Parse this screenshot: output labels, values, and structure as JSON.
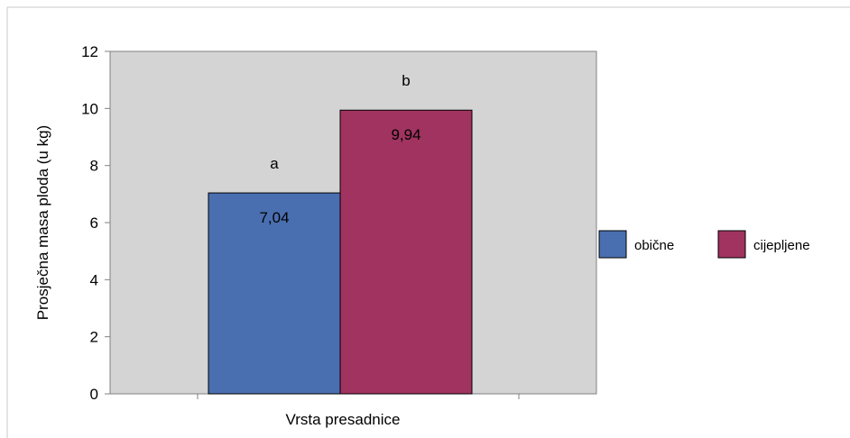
{
  "chart_data": {
    "type": "bar",
    "title": "",
    "xlabel": "Vrsta presadnice",
    "ylabel": "Prosječna masa ploda (u kg)",
    "ylim": [
      0,
      12
    ],
    "yticks": [
      "0",
      "2",
      "4",
      "6",
      "8",
      "10",
      "12"
    ],
    "grid": false,
    "legend_position": "right",
    "series": [
      {
        "name": "obične",
        "values": [
          7.04
        ],
        "data_label": "7,04",
        "significance": "a",
        "color": "#4a6fb0"
      },
      {
        "name": "cijepljene",
        "values": [
          9.94
        ],
        "data_label": "9,94",
        "significance": "b",
        "color": "#a0335f"
      }
    ],
    "plot_background": "#d4d4d4"
  }
}
